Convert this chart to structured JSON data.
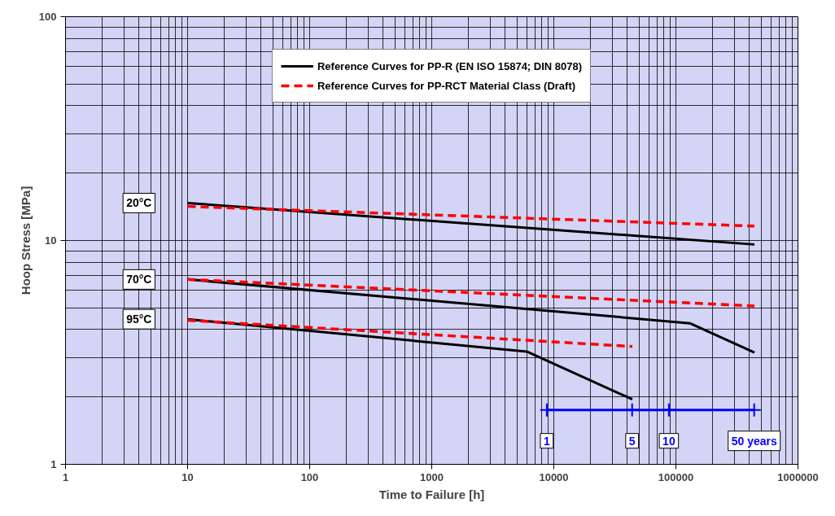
{
  "chart_data": {
    "type": "line",
    "xlabel": "Time to Failure [h]",
    "ylabel": "Hoop Stress [MPa]",
    "log": "xy",
    "xlim": [
      1,
      1000000
    ],
    "ylim": [
      1,
      100
    ],
    "xticks": [
      1,
      10,
      100,
      1000,
      10000,
      100000,
      1000000
    ],
    "yticks": [
      1,
      10,
      100
    ],
    "grid": true,
    "legend": "top",
    "marker": "none",
    "series": [
      {
        "name": "Reference Curves for PP-R (EN ISO 15874; DIN 8078)",
        "color": "#000000",
        "line_style": "solid",
        "x": [
          10,
          440000
        ],
        "values": [
          14.7,
          9.6
        ]
      },
      {
        "color": "#000000",
        "line_style": "solid",
        "x": [
          10,
          130000,
          440000
        ],
        "values": [
          6.7,
          4.27,
          3.16
        ]
      },
      {
        "color": "#000000",
        "line_style": "solid",
        "x": [
          10,
          6000,
          44000
        ],
        "values": [
          4.45,
          3.19,
          1.95
        ]
      },
      {
        "name": "Reference Curves for PP-RCT Material Class (Draft)",
        "color": "#ff0000",
        "line_style": "dashed",
        "x": [
          10,
          440000
        ],
        "values": [
          14.2,
          11.6
        ]
      },
      {
        "color": "#ff0000",
        "line_style": "dashed",
        "x": [
          10,
          440000
        ],
        "values": [
          6.7,
          5.1
        ]
      },
      {
        "color": "#ff0000",
        "line_style": "dashed",
        "x": [
          10,
          44000
        ],
        "values": [
          4.4,
          3.36
        ]
      },
      {
        "color": "#0000ff",
        "line_style": "solid",
        "marker": "cross",
        "x": [
          8760,
          43800,
          87600,
          438000
        ],
        "values": [
          1.75,
          1.75,
          1.75,
          1.75
        ]
      }
    ],
    "annotations": [
      {
        "text": "20°C",
        "x": 4,
        "y": 14.7
      },
      {
        "text": "70°C",
        "x": 4,
        "y": 6.7
      },
      {
        "text": "95°C",
        "x": 4,
        "y": 4.45
      },
      {
        "text": "1",
        "x": 8760,
        "y": 1.75
      },
      {
        "text": "5",
        "x": 43800,
        "y": 1.75
      },
      {
        "text": "10",
        "x": 87600,
        "y": 1.75
      },
      {
        "text": "50 years",
        "x": 438000,
        "y": 1.75
      }
    ]
  }
}
